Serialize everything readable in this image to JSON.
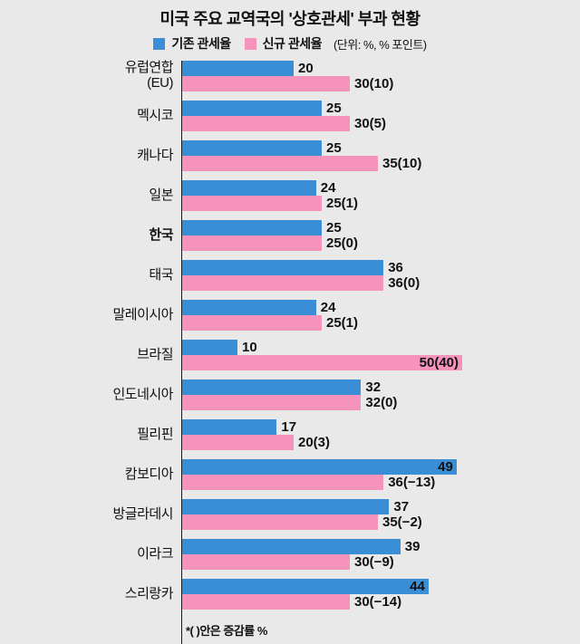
{
  "title": "미국 주요 교역국의 '상호관세' 부과 현황",
  "legend": {
    "unit_note": "(단위: %, % 포인트)"
  },
  "footnote": "*( )안은 증감률 %",
  "colors": {
    "existing": "#3a8ed6",
    "new": "#f693bd",
    "background": "#e9e9e9",
    "axis": "#1a1a1a"
  },
  "chart_data": {
    "type": "bar",
    "orientation": "horizontal",
    "title": "미국 주요 교역국의 '상호관세' 부과 현황",
    "unit": "%, % 포인트",
    "xlim": [
      0,
      50
    ],
    "legend_position": "top",
    "grid": false,
    "emphasis_category_index": 4,
    "categories": [
      "유럽연합\n(EU)",
      "멕시코",
      "캐나다",
      "일본",
      "한국",
      "태국",
      "말레이시아",
      "브라질",
      "인도네시아",
      "필리핀",
      "캄보디아",
      "방글라데시",
      "이라크",
      "스리랑카"
    ],
    "series": [
      {
        "name": "기존 관세율",
        "color": "#3a8ed6",
        "values": [
          20,
          25,
          25,
          24,
          25,
          36,
          24,
          10,
          32,
          17,
          49,
          37,
          39,
          44
        ],
        "labels": [
          "20",
          "25",
          "25",
          "24",
          "25",
          "36",
          "24",
          "10",
          "32",
          "17",
          "49",
          "37",
          "39",
          "44"
        ],
        "inside_indices": [
          10,
          13
        ]
      },
      {
        "name": "신규 관세율",
        "color": "#f693bd",
        "values": [
          30,
          30,
          35,
          25,
          25,
          36,
          25,
          50,
          32,
          20,
          36,
          35,
          30,
          30
        ],
        "labels": [
          "30(10)",
          "30(5)",
          "35(10)",
          "25(1)",
          "25(0)",
          "36(0)",
          "25(1)",
          "50(40)",
          "32(0)",
          "20(3)",
          "36(−13)",
          "35(−2)",
          "30(−9)",
          "30(−14)"
        ],
        "inside_indices": [
          7
        ]
      }
    ]
  }
}
